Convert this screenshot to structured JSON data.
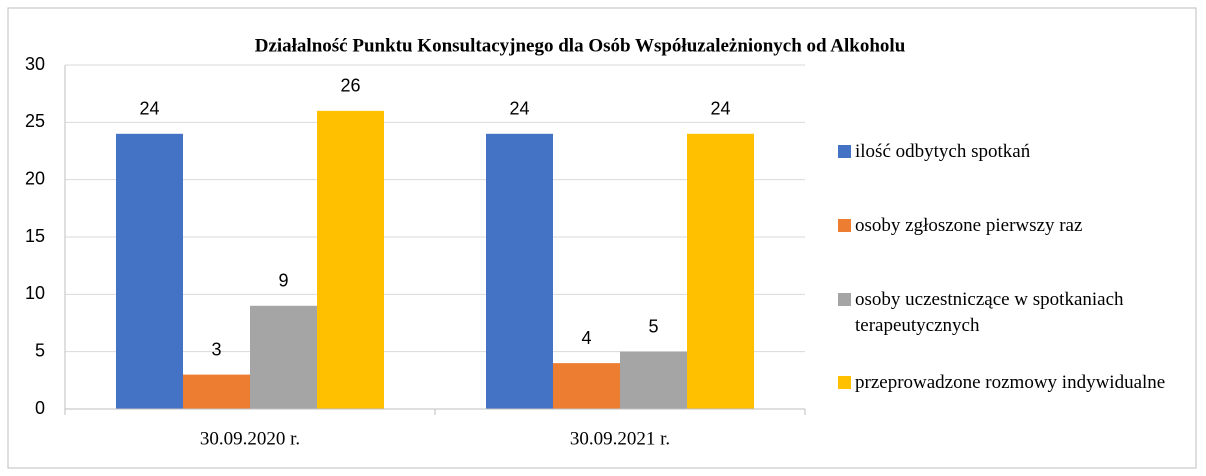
{
  "chart_data": {
    "type": "bar",
    "title": "Działalność Punktu Konsultacyjnego dla Osób Współuzależnionych od Alkoholu",
    "categories": [
      "30.09.2020 r.",
      "30.09.2021 r."
    ],
    "series": [
      {
        "name": "ilość odbytych spotkań",
        "color": "#4472c4",
        "values": [
          24,
          24
        ]
      },
      {
        "name": "osoby zgłoszone pierwszy raz",
        "color": "#ed7d31",
        "values": [
          3,
          4
        ]
      },
      {
        "name": "osoby uczestniczące w spotkaniach terapeutycznych",
        "color": "#a5a5a5",
        "values": [
          9,
          5
        ]
      },
      {
        "name": "przeprowadzone rozmowy indywidualne",
        "color": "#ffc000",
        "values": [
          26,
          24
        ]
      }
    ],
    "ylim": [
      0,
      30
    ],
    "yticks": [
      0,
      5,
      10,
      15,
      20,
      25,
      30
    ],
    "grid": true,
    "legend": "right"
  }
}
